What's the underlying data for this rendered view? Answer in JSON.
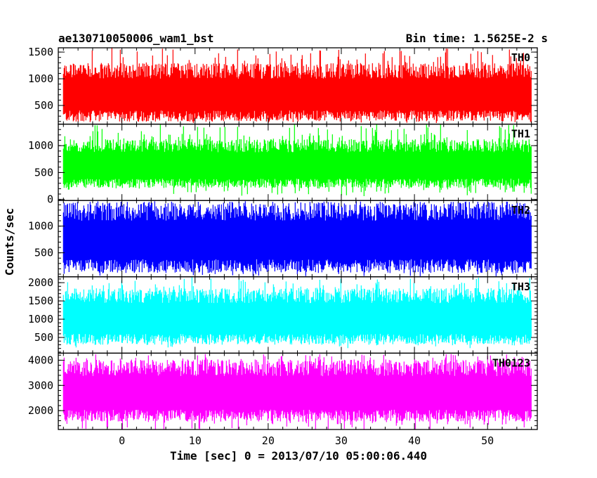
{
  "chart_data": {
    "type": "line",
    "title_left": "ae130710050006_wam1_bst",
    "title_right": "Bin time: 1.5625E-2 s",
    "xlabel": "Time [sec] 0 = 2013/07/10 05:00:06.440",
    "ylabel": "Counts/sec",
    "xlim": [
      -8.7,
      56.8
    ],
    "x_ticks": [
      0,
      10,
      20,
      30,
      40,
      50
    ],
    "x_data_range": [
      -8.0,
      56.0
    ],
    "bin_time_s": 0.015625,
    "grid": false,
    "panels": [
      {
        "name": "TH0",
        "color": "#ff0000",
        "ylim": [
          150,
          1580
        ],
        "y_ticks": [
          500,
          1000,
          1500
        ],
        "y_tick_labels": [
          "500",
          "1000",
          "1500"
        ],
        "typical_range": [
          300,
          1150
        ],
        "min_value": 170,
        "max_value": 1580
      },
      {
        "name": "TH1",
        "color": "#00ff00",
        "ylim": [
          -20,
          1400
        ],
        "y_ticks": [
          0,
          500,
          1000
        ],
        "y_tick_labels": [
          "0",
          "500",
          "1000"
        ],
        "typical_range": [
          300,
          1000
        ],
        "min_value": 60,
        "max_value": 1400
      },
      {
        "name": "TH2",
        "color": "#0000ff",
        "ylim": [
          50,
          1480
        ],
        "y_ticks": [
          500,
          1000
        ],
        "y_tick_labels": [
          "500",
          "1000"
        ],
        "typical_range": [
          250,
          1280
        ],
        "min_value": 60,
        "max_value": 1470
      },
      {
        "name": "TH3",
        "color": "#00ffff",
        "ylim": [
          70,
          2160
        ],
        "y_ticks": [
          500,
          1000,
          1500,
          2000
        ],
        "y_tick_labels": [
          "500",
          "1000",
          "1500",
          "2000"
        ],
        "typical_range": [
          450,
          1650
        ],
        "min_value": 200,
        "max_value": 2150
      },
      {
        "name": "TH0123",
        "color": "#ff00ff",
        "ylim": [
          1250,
          4280
        ],
        "y_ticks": [
          2000,
          3000,
          4000
        ],
        "y_tick_labels": [
          "2000",
          "3000",
          "4000"
        ],
        "typical_range": [
          1800,
          3700
        ],
        "min_value": 1250,
        "max_value": 4250
      }
    ]
  }
}
